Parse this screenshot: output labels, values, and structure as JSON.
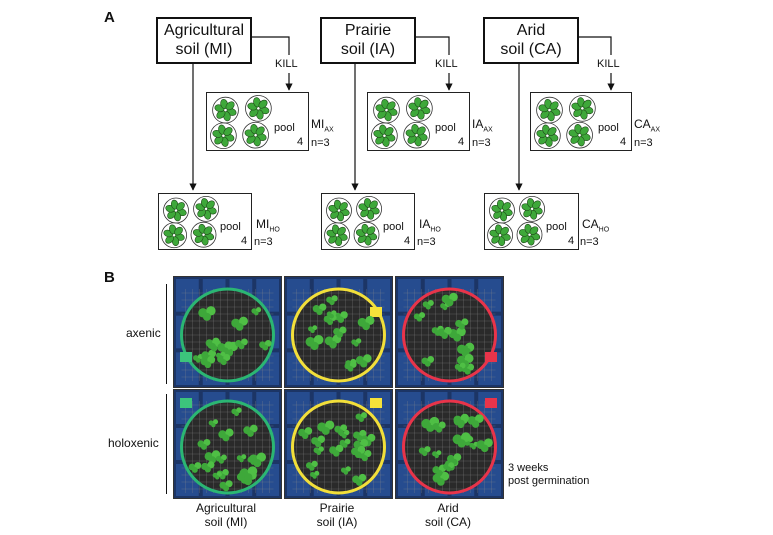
{
  "panel_a": {
    "letter": "A",
    "kill_label": "KILL",
    "pool_label": "pool",
    "pool_count": "4",
    "n_label": "n=3",
    "soils": [
      {
        "name_line1": "Agricultural",
        "name_line2": "soil (MI)",
        "ax_code": "MI",
        "ax_sub": "AX",
        "ho_code": "MI",
        "ho_sub": "HO"
      },
      {
        "name_line1": "Prairie",
        "name_line2": "soil (IA)",
        "ax_code": "IA",
        "ax_sub": "AX",
        "ho_code": "IA",
        "ho_sub": "HO"
      },
      {
        "name_line1": "Arid",
        "name_line2": "soil (CA)",
        "ax_code": "CA",
        "ax_sub": "AX",
        "ho_code": "CA",
        "ho_sub": "HO"
      }
    ]
  },
  "panel_b": {
    "letter": "B",
    "row_labels": [
      "axenic",
      "holoxenic"
    ],
    "col_labels": [
      {
        "line1": "Agricultural",
        "line2": "soil (MI)"
      },
      {
        "line1": "Prairie",
        "line2": "soil (IA)"
      },
      {
        "line1": "Arid",
        "line2": "soil (CA)"
      }
    ],
    "time_note_line1": "3 weeks",
    "time_note_line2": "post germination",
    "ring_colors": [
      "#2bb673",
      "#f2df3a",
      "#e8344a"
    ],
    "tag_colors": [
      "#3cc47c",
      "#f6e23a",
      "#e8344a"
    ],
    "tray_color": "#2f5fb0",
    "leaf_color": "#3ea83a"
  }
}
